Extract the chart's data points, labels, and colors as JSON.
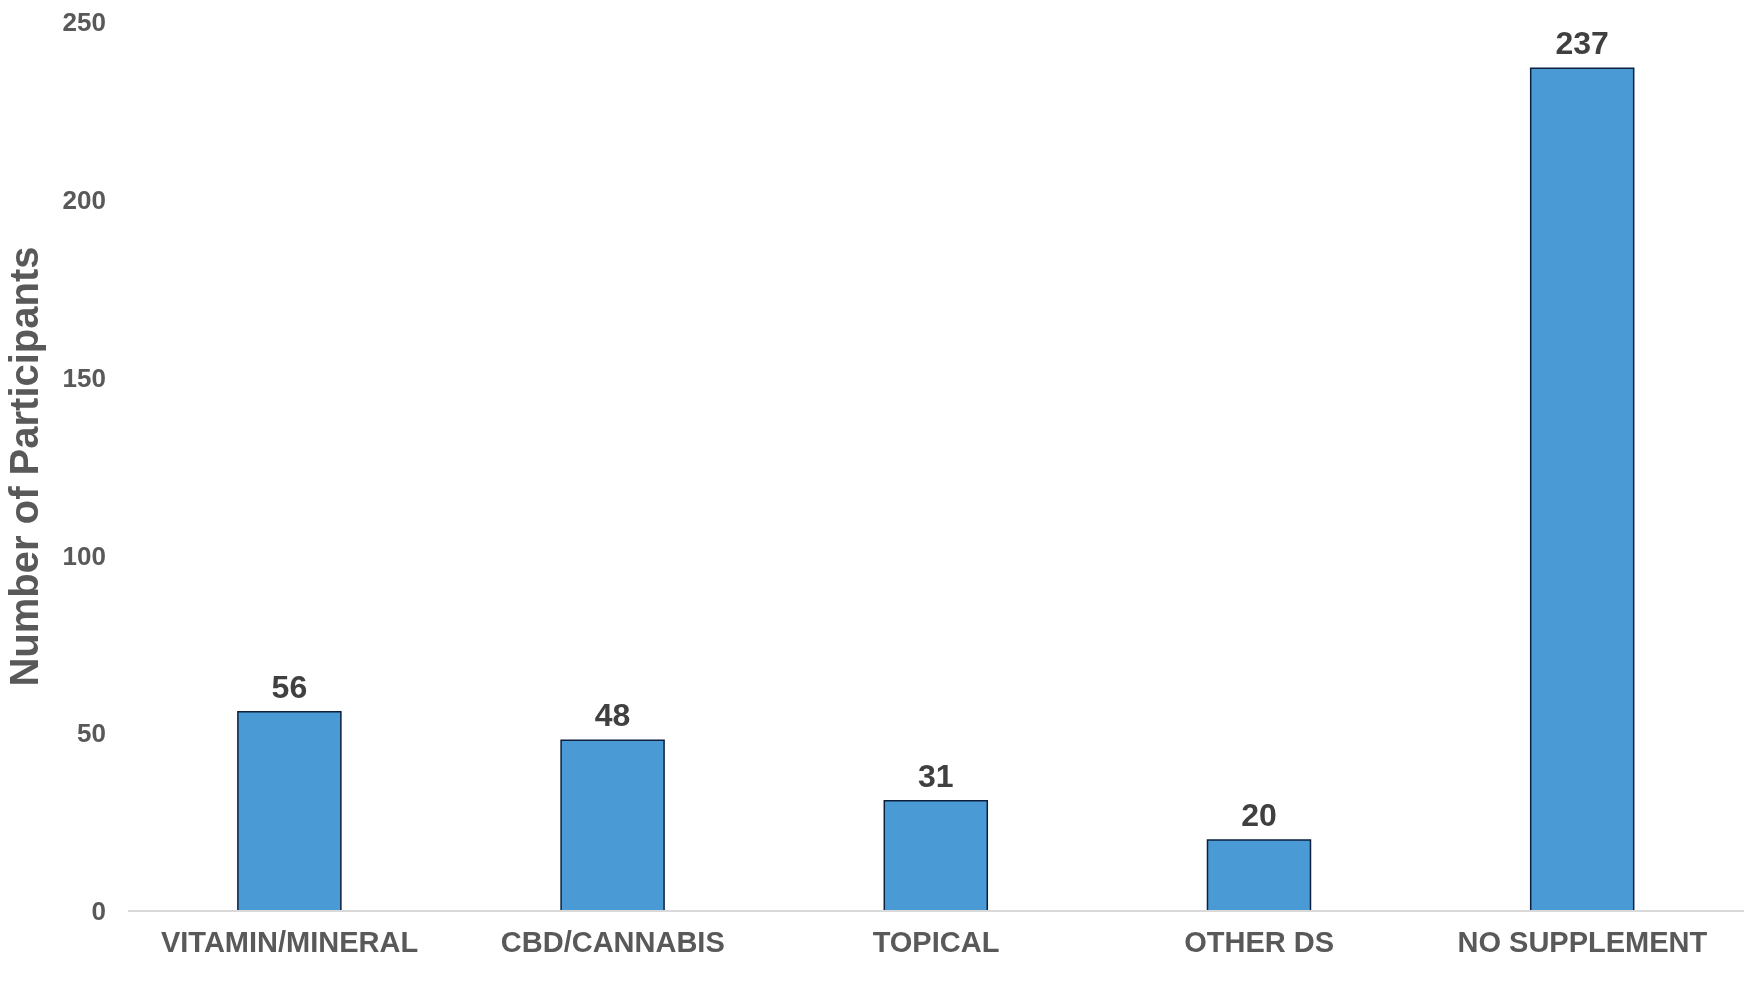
{
  "chart_data": {
    "type": "bar",
    "ylabel": "Number of Participants",
    "categories": [
      "VITAMIN/MINERAL",
      "CBD/CANNABIS",
      "TOPICAL",
      "OTHER DS",
      "NO SUPPLEMENT"
    ],
    "values": [
      56,
      48,
      31,
      20,
      237
    ],
    "color": "#4a9bd5",
    "ylim": [
      0,
      250
    ],
    "yticks": [
      0,
      50,
      100,
      150,
      200,
      250
    ],
    "grid": false,
    "data_labels": true,
    "legend": false
  }
}
